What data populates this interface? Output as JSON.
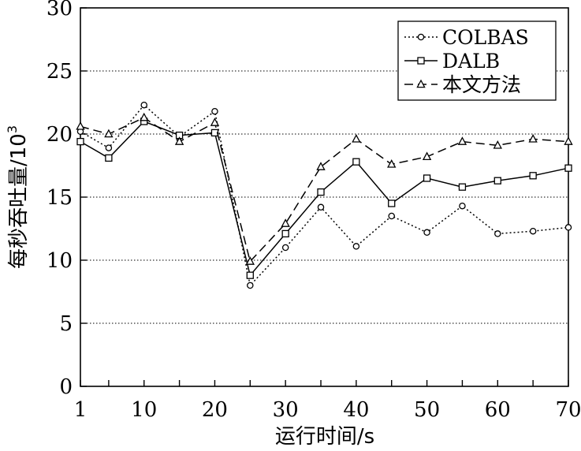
{
  "chart_data": {
    "type": "line",
    "xlabel": "运行时间/s",
    "ylabel": "每秒吞吐量/10",
    "ylabel_superscript": "3",
    "xlim": [
      1,
      70
    ],
    "ylim": [
      0,
      30
    ],
    "xticks": [
      1,
      10,
      20,
      30,
      40,
      50,
      60,
      70
    ],
    "yticks": [
      0,
      5,
      10,
      15,
      20,
      25,
      30
    ],
    "grid": "horizontal-dotted",
    "legend_position": "top-right",
    "x": [
      1,
      5,
      10,
      15,
      20,
      25,
      30,
      35,
      40,
      45,
      50,
      55,
      60,
      65,
      70
    ],
    "series": [
      {
        "name": "COLBAS",
        "line": "dotted",
        "marker": "circle",
        "values": [
          20.2,
          18.9,
          22.3,
          19.8,
          21.8,
          8.0,
          11.0,
          14.2,
          11.1,
          13.5,
          12.2,
          14.3,
          12.1,
          12.3,
          12.6
        ]
      },
      {
        "name": "DALB",
        "line": "solid",
        "marker": "square",
        "values": [
          19.4,
          18.1,
          21.0,
          19.9,
          20.1,
          8.8,
          12.1,
          15.4,
          17.8,
          14.5,
          16.5,
          15.8,
          16.3,
          16.7,
          17.3
        ]
      },
      {
        "name": "本文方法",
        "line": "dashed",
        "marker": "triangle",
        "values": [
          20.6,
          20.0,
          21.3,
          19.4,
          20.9,
          9.9,
          12.9,
          17.4,
          19.6,
          17.6,
          18.2,
          19.4,
          19.1,
          19.6,
          19.4
        ]
      }
    ]
  }
}
